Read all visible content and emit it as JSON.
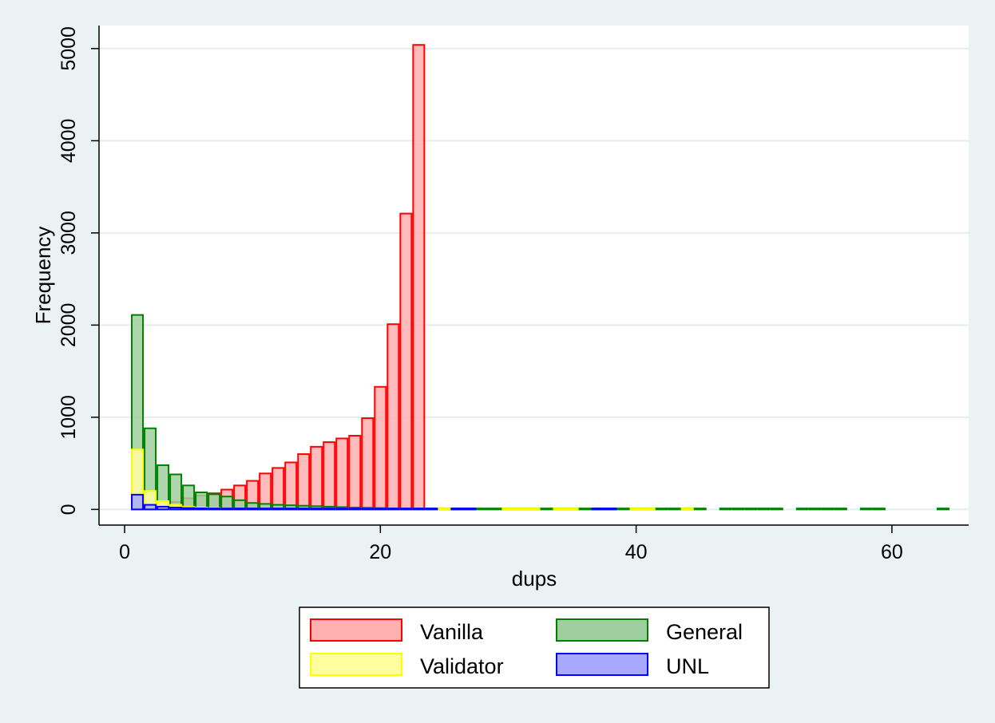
{
  "chart_data": {
    "type": "bar",
    "title": "",
    "xlabel": "dups",
    "ylabel": "Frequency",
    "xlim": [
      -2,
      66
    ],
    "ylim": [
      -170,
      5250
    ],
    "x_ticks": [
      0,
      20,
      40,
      60
    ],
    "y_ticks": [
      0,
      1000,
      2000,
      3000,
      4000,
      5000
    ],
    "grid": true,
    "legend": "bottom",
    "bin_width": 1,
    "draw_order": [
      "Vanilla",
      "General",
      "Validator",
      "UNL"
    ],
    "series": [
      {
        "name": "Vanilla",
        "fill": "#ffb0b0",
        "stroke": "#ff0000",
        "bins": [
          [
            1,
            60
          ],
          [
            2,
            45
          ],
          [
            3,
            60
          ],
          [
            4,
            80
          ],
          [
            5,
            120
          ],
          [
            6,
            150
          ],
          [
            7,
            175
          ],
          [
            8,
            215
          ],
          [
            9,
            260
          ],
          [
            10,
            310
          ],
          [
            11,
            390
          ],
          [
            12,
            450
          ],
          [
            13,
            510
          ],
          [
            14,
            600
          ],
          [
            15,
            680
          ],
          [
            16,
            730
          ],
          [
            17,
            770
          ],
          [
            18,
            800
          ],
          [
            19,
            990
          ],
          [
            20,
            1330
          ],
          [
            21,
            2010
          ],
          [
            22,
            3210
          ],
          [
            23,
            5040
          ]
        ]
      },
      {
        "name": "General",
        "fill": "#9fcf9f",
        "stroke": "#008000",
        "bins": [
          [
            1,
            2110
          ],
          [
            2,
            880
          ],
          [
            3,
            480
          ],
          [
            4,
            380
          ],
          [
            5,
            260
          ],
          [
            6,
            185
          ],
          [
            7,
            165
          ],
          [
            8,
            140
          ],
          [
            9,
            100
          ],
          [
            10,
            70
          ],
          [
            11,
            60
          ],
          [
            12,
            50
          ],
          [
            13,
            45
          ],
          [
            14,
            40
          ],
          [
            15,
            35
          ],
          [
            16,
            30
          ],
          [
            17,
            25
          ],
          [
            18,
            20
          ],
          [
            19,
            18
          ],
          [
            20,
            15
          ],
          [
            21,
            12
          ],
          [
            22,
            10
          ],
          [
            23,
            9
          ],
          [
            24,
            8
          ],
          [
            25,
            7
          ],
          [
            26,
            6
          ],
          [
            27,
            6
          ],
          [
            28,
            5
          ],
          [
            29,
            5
          ],
          [
            30,
            5
          ],
          [
            31,
            4
          ],
          [
            32,
            4
          ],
          [
            33,
            4
          ],
          [
            34,
            3
          ],
          [
            35,
            3
          ],
          [
            36,
            3
          ],
          [
            37,
            3
          ],
          [
            38,
            3
          ],
          [
            39,
            2
          ],
          [
            40,
            2
          ],
          [
            41,
            2
          ],
          [
            42,
            2
          ],
          [
            43,
            2
          ],
          [
            44,
            2
          ],
          [
            45,
            2
          ],
          [
            47,
            2
          ],
          [
            48,
            1
          ],
          [
            49,
            1
          ],
          [
            50,
            1
          ],
          [
            51,
            1
          ],
          [
            53,
            1
          ],
          [
            54,
            1
          ],
          [
            55,
            1
          ],
          [
            56,
            1
          ],
          [
            58,
            1
          ],
          [
            59,
            1
          ],
          [
            64,
            1
          ]
        ]
      },
      {
        "name": "Validator",
        "fill": "#ffffa0",
        "stroke": "#ffff00",
        "bins": [
          [
            1,
            650
          ],
          [
            2,
            200
          ],
          [
            3,
            90
          ],
          [
            4,
            50
          ],
          [
            5,
            30
          ],
          [
            6,
            20
          ],
          [
            7,
            15
          ],
          [
            8,
            12
          ],
          [
            9,
            10
          ],
          [
            10,
            8
          ],
          [
            11,
            7
          ],
          [
            12,
            6
          ],
          [
            13,
            5
          ],
          [
            14,
            5
          ],
          [
            15,
            4
          ],
          [
            16,
            4
          ],
          [
            17,
            3
          ],
          [
            18,
            3
          ],
          [
            19,
            3
          ],
          [
            20,
            2
          ],
          [
            21,
            2
          ],
          [
            22,
            2
          ],
          [
            23,
            2
          ],
          [
            24,
            2
          ],
          [
            25,
            1
          ],
          [
            30,
            1
          ],
          [
            31,
            1
          ],
          [
            32,
            1
          ],
          [
            34,
            1
          ],
          [
            35,
            1
          ],
          [
            40,
            1
          ],
          [
            41,
            1
          ],
          [
            44,
            1
          ]
        ]
      },
      {
        "name": "UNL",
        "fill": "#a8a8ff",
        "stroke": "#0000ff",
        "bins": [
          [
            1,
            160
          ],
          [
            2,
            50
          ],
          [
            3,
            30
          ],
          [
            4,
            20
          ],
          [
            5,
            15
          ],
          [
            6,
            12
          ],
          [
            7,
            10
          ],
          [
            8,
            8
          ],
          [
            9,
            7
          ],
          [
            10,
            6
          ],
          [
            11,
            5
          ],
          [
            12,
            5
          ],
          [
            13,
            4
          ],
          [
            14,
            4
          ],
          [
            15,
            3
          ],
          [
            16,
            3
          ],
          [
            17,
            3
          ],
          [
            18,
            2
          ],
          [
            19,
            2
          ],
          [
            20,
            2
          ],
          [
            21,
            2
          ],
          [
            22,
            2
          ],
          [
            23,
            2
          ],
          [
            24,
            1
          ],
          [
            26,
            1
          ],
          [
            27,
            1
          ],
          [
            37,
            1
          ],
          [
            38,
            1
          ]
        ]
      }
    ]
  }
}
